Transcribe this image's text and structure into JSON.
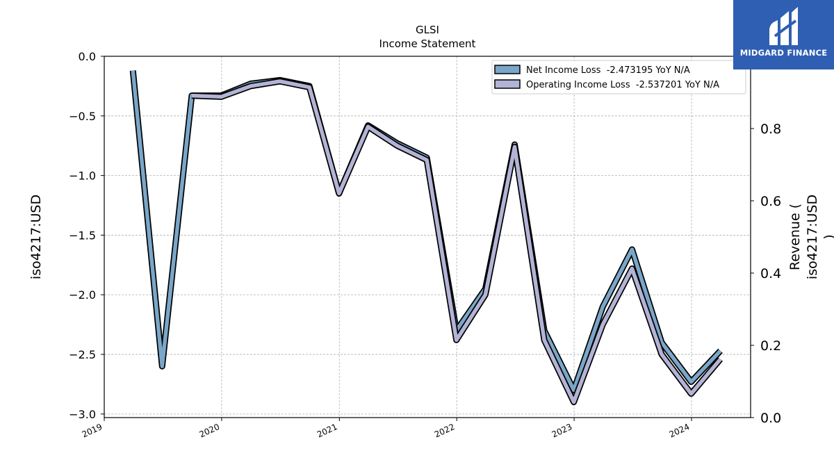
{
  "chart_data": {
    "type": "line",
    "title": "GLSI",
    "subtitle": "Income Statement",
    "ylabel": "iso4217:USD",
    "y2label": [
      "Revenue (",
      "iso4217:USD",
      ")"
    ],
    "ylim": [
      -3.03,
      0.0
    ],
    "y2lim": [
      0.0,
      1.0
    ],
    "yticks": [
      "0.0",
      "−0.5",
      "−1.0",
      "−1.5",
      "−2.0",
      "−2.5",
      "−3.0"
    ],
    "y2ticks": [
      "0.0",
      "0.2",
      "0.4",
      "0.6",
      "0.8"
    ],
    "xticks": [
      "2019",
      "2020",
      "2021",
      "2022",
      "2023",
      "2024"
    ],
    "grid": true,
    "legend_position": "top-right",
    "series": [
      {
        "name": "Net Income Loss  -2.473195 YoY N/A",
        "color": "#7aa6c8",
        "x": [
          "2019-03-31",
          "2019-06-30",
          "2019-09-30",
          "2019-12-31",
          "2020-03-31",
          "2020-06-30",
          "2020-09-30",
          "2020-12-31",
          "2021-03-31",
          "2021-06-30",
          "2021-09-30",
          "2021-12-31",
          "2022-03-31",
          "2022-06-30",
          "2022-09-30",
          "2022-12-31",
          "2023-03-31",
          "2023-06-30",
          "2023-09-30",
          "2023-12-31",
          "2024-03-31"
        ],
        "values": [
          -0.12,
          -2.6,
          -0.33,
          -0.33,
          -0.23,
          -0.2,
          -0.25,
          -1.15,
          -0.58,
          -0.73,
          -0.85,
          -2.3,
          -1.95,
          -0.74,
          -2.3,
          -2.8,
          -2.1,
          -1.62,
          -2.4,
          -2.73,
          -2.47
        ]
      },
      {
        "name": "Operating Income Loss  -2.537201 YoY N/A",
        "color": "#b3b3d6",
        "x": [
          "2019-09-30",
          "2019-12-31",
          "2020-03-31",
          "2020-06-30",
          "2020-09-30",
          "2020-12-31",
          "2021-03-31",
          "2021-06-30",
          "2021-09-30",
          "2021-12-31",
          "2022-03-31",
          "2022-06-30",
          "2022-09-30",
          "2022-12-31",
          "2023-03-31",
          "2023-06-30",
          "2023-09-30",
          "2023-12-31",
          "2024-03-31"
        ],
        "values": [
          -0.33,
          -0.34,
          -0.25,
          -0.21,
          -0.26,
          -1.15,
          -0.59,
          -0.75,
          -0.87,
          -2.38,
          -2.0,
          -0.76,
          -2.38,
          -2.9,
          -2.25,
          -1.78,
          -2.5,
          -2.83,
          -2.54
        ]
      }
    ]
  },
  "logo": {
    "text": "MIDGARD FINANCE"
  }
}
